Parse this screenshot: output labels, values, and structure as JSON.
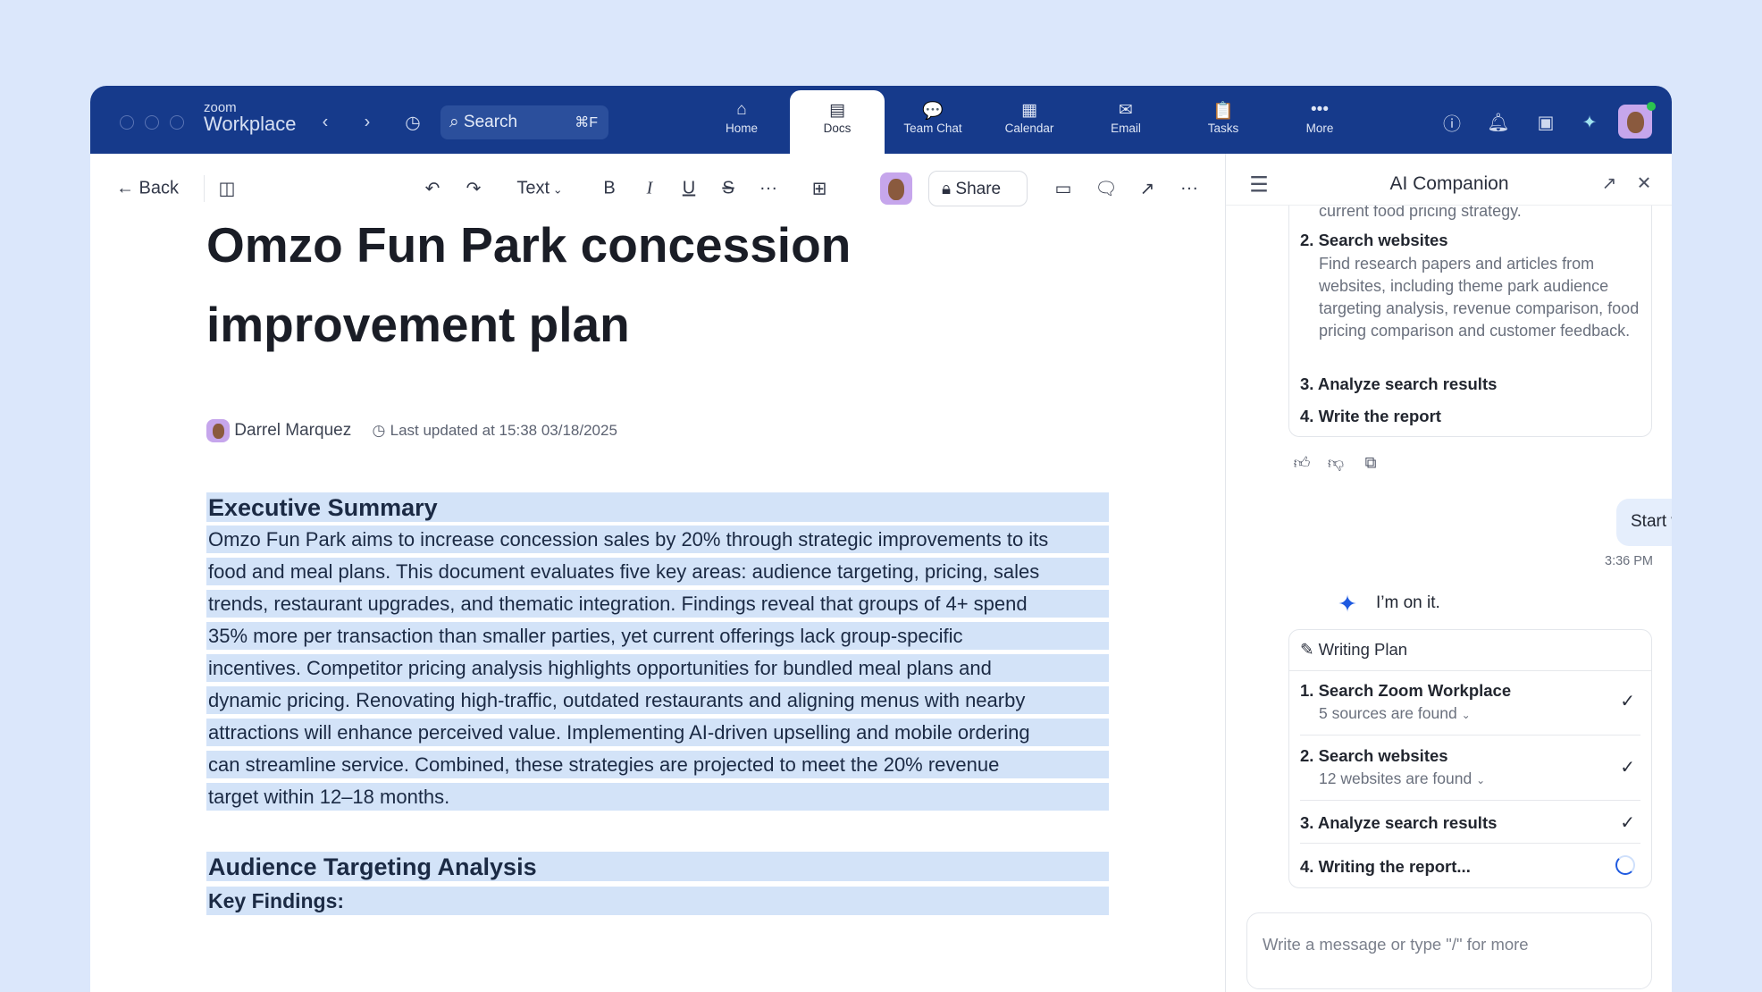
{
  "app": {
    "logo_top": "zoom",
    "logo_bottom": "Workplace"
  },
  "search": {
    "label": "Search",
    "shortcut": "⌘F"
  },
  "nav_tabs": [
    {
      "label": "Home",
      "icon": "home-icon",
      "glyph": "⌂"
    },
    {
      "label": "Docs",
      "icon": "doc-icon",
      "glyph": "▤",
      "active": true
    },
    {
      "label": "Team Chat",
      "icon": "chat-icon",
      "glyph": "💬"
    },
    {
      "label": "Calendar",
      "icon": "calendar-icon",
      "glyph": "▦"
    },
    {
      "label": "Email",
      "icon": "email-icon",
      "glyph": "✉"
    },
    {
      "label": "Tasks",
      "icon": "tasks-icon",
      "glyph": "📋"
    },
    {
      "label": "More",
      "icon": "more-icon",
      "glyph": "•••"
    }
  ],
  "toolbar": {
    "back": "Back",
    "text_style": "Text",
    "share": "Share"
  },
  "doc": {
    "title": "Omzo Fun Park concession improvement plan",
    "author": "Darrel Marquez",
    "updated": "Last updated at 15:38 03/18/2025",
    "section1_heading": "Executive Summary",
    "section1_lines": [
      "Omzo Fun Park aims to increase concession sales by 20% through strategic improvements to its",
      "food and meal plans. This document evaluates five key areas: audience targeting, pricing, sales",
      "trends, restaurant upgrades, and thematic integration. Findings reveal that groups of 4+ spend",
      "35% more per transaction than smaller parties, yet current offerings lack group-specific",
      "incentives. Competitor pricing analysis highlights opportunities for bundled meal plans and",
      "dynamic pricing. Renovating high-traffic, outdated restaurants and aligning menus with nearby",
      "attractions will enhance perceived value. Implementing AI-driven upselling and mobile ordering",
      "can streamline service. Combined, these strategies are projected to meet the 20% revenue",
      "target within 12–18 months."
    ],
    "section2_heading": "Audience Targeting Analysis",
    "section2_sub": "Key Findings:"
  },
  "panel": {
    "title": "AI Companion",
    "prev_plan": {
      "clipped_text": "current food pricing strategy.",
      "step2": "2. Search websites",
      "step2_desc": "Find research papers and articles from websites, including theme park audience targeting analysis, revenue comparison, food pricing comparison and customer feedback.",
      "step3": "3. Analyze search results",
      "step4": "4. Write the report"
    },
    "user_msg": "Start writng",
    "user_time": "3:36 PM",
    "ai_msg": "I’m on it.",
    "plan": {
      "title": "Writing Plan",
      "items": [
        {
          "title": "1. Search Zoom Workplace",
          "sub": "5 sources are found",
          "status": "done"
        },
        {
          "title": "2. Search websites",
          "sub": "12 websites are found",
          "status": "done"
        },
        {
          "title": "3. Analyze search results",
          "status": "done"
        },
        {
          "title": "4. Writing the report...",
          "status": "in-progress"
        }
      ]
    },
    "input_placeholder": "Write a message or type \"/\"  for more"
  },
  "colors": {
    "header": "#163a8b",
    "highlight": "#d3e3f8",
    "accent": "#1f5ae0"
  }
}
